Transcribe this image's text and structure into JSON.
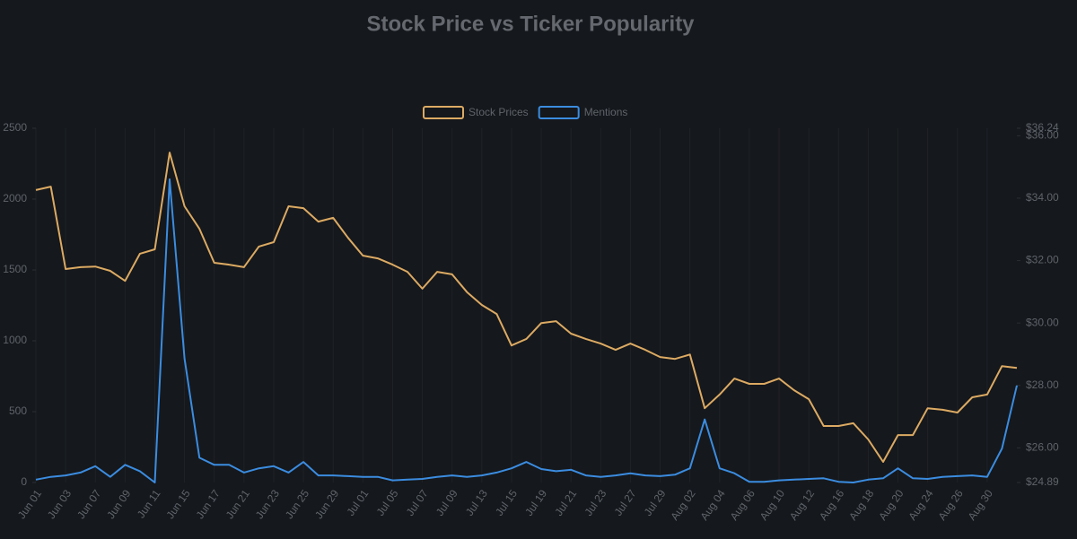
{
  "chart_data": {
    "type": "line",
    "title": "Stock Price vs Ticker Popularity",
    "categories": [
      "Jun 01",
      null,
      "Jun 03",
      null,
      "Jun 07",
      null,
      "Jun 09",
      null,
      "Jun 11",
      null,
      "Jun 15",
      null,
      "Jun 17",
      null,
      "Jun 21",
      null,
      "Jun 23",
      null,
      "Jun 25",
      null,
      "Jun 29",
      null,
      "Jul 01",
      null,
      "Jul 05",
      null,
      "Jul 07",
      null,
      "Jul 09",
      null,
      "Jul 13",
      null,
      "Jul 15",
      null,
      "Jul 19",
      null,
      "Jul 21",
      null,
      "Jul 23",
      null,
      "Jul 27",
      null,
      "Jul 29",
      null,
      "Aug 02",
      null,
      "Aug 04",
      null,
      "Aug 06",
      null,
      "Aug 10",
      null,
      "Aug 12",
      null,
      "Aug 16",
      null,
      "Aug 18",
      null,
      "Aug 20",
      null,
      "Aug 24",
      null,
      "Aug 26",
      null,
      "Aug 30",
      null,
      null
    ],
    "series": [
      {
        "name": "Stock Prices",
        "color": "#dcaa63",
        "axis": "y2",
        "values": [
          34.26,
          34.37,
          31.73,
          31.79,
          31.81,
          31.67,
          31.35,
          32.22,
          32.36,
          35.46,
          33.74,
          33.02,
          31.93,
          31.87,
          31.79,
          32.45,
          32.59,
          33.74,
          33.68,
          33.25,
          33.37,
          32.73,
          32.16,
          32.07,
          31.87,
          31.64,
          31.1,
          31.64,
          31.56,
          30.99,
          30.58,
          30.29,
          29.28,
          29.49,
          30.0,
          30.06,
          29.66,
          29.49,
          29.34,
          29.14,
          29.34,
          29.14,
          28.91,
          28.85,
          28.99,
          27.27,
          27.71,
          28.22,
          28.05,
          28.05,
          28.22,
          27.85,
          27.56,
          26.7,
          26.7,
          26.79,
          26.27,
          25.55,
          26.41,
          26.41,
          27.27,
          27.22,
          27.13,
          27.62,
          27.71,
          28.62,
          28.56
        ]
      },
      {
        "name": "Mentions",
        "color": "#3b8ce0",
        "values": [
          20,
          40,
          50,
          70,
          115,
          40,
          125,
          80,
          0,
          2140,
          875,
          175,
          125,
          125,
          70,
          100,
          115,
          70,
          145,
          50,
          50,
          45,
          40,
          40,
          15,
          20,
          25,
          40,
          50,
          40,
          50,
          70,
          100,
          145,
          95,
          80,
          90,
          50,
          40,
          50,
          65,
          50,
          45,
          55,
          100,
          445,
          100,
          65,
          5,
          5,
          15,
          20,
          25,
          30,
          5,
          0,
          20,
          30,
          100,
          30,
          25,
          40,
          45,
          50,
          40,
          240,
          685
        ]
      }
    ],
    "ylim": [
      0,
      2500
    ],
    "yticks": [
      0,
      500,
      1000,
      1500,
      2000,
      2500
    ],
    "y2lim": [
      24.89,
      36.24
    ],
    "y2ticks": [
      {
        "value": 24.89,
        "label": "$24.89"
      },
      {
        "value": 26,
        "label": "$26.00"
      },
      {
        "value": 28,
        "label": "$28.00"
      },
      {
        "value": 30,
        "label": "$30.00"
      },
      {
        "value": 32,
        "label": "$32.00"
      },
      {
        "value": 34,
        "label": "$34.00"
      },
      {
        "value": 36,
        "label": "$36.00"
      },
      {
        "value": 36.24,
        "label": "$36.24"
      }
    ],
    "grid": true,
    "legend": "top"
  }
}
